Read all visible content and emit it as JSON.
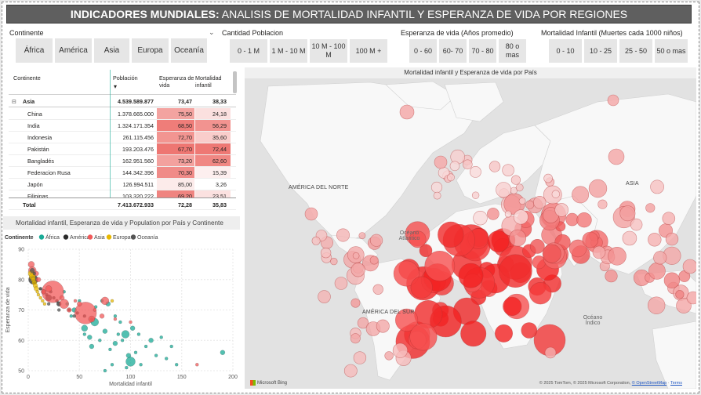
{
  "title": {
    "bold": "INDICADORES MUNDIALES:",
    "rest": " ANALISIS DE MORTALIDAD INFANTIL Y ESPERANZA DE VIDA POR REGIONES"
  },
  "slicers": {
    "continente": {
      "label": "Continente",
      "items": [
        "África",
        "América",
        "Asia",
        "Europa",
        "Oceanía"
      ]
    },
    "poblacion": {
      "label": "Cantidad Poblacion",
      "items": [
        "0 - 1 M",
        "1 M - 10 M",
        "10 M - 100 M",
        "100 M +"
      ]
    },
    "esperanza": {
      "label": "Esperanza de vida (Años promedio)",
      "items": [
        "0 - 60",
        "60- 70",
        "70 - 80",
        "80 o mas"
      ]
    },
    "mortalidad": {
      "label": "Mortalidad Infantil (Muertes cada 1000 niños)",
      "items": [
        "0 - 10",
        "10 - 25",
        "25 - 50",
        "50 o mas"
      ]
    }
  },
  "table": {
    "headers": {
      "continente": "Continente",
      "poblacion": "Población",
      "esperanza": "Esperanza de vida",
      "mortalidad": "Mortalidad infantil"
    },
    "group": {
      "expander": "⊟",
      "name": "Asia",
      "poblacion": "4.539.589.877",
      "esperanza": "73,47",
      "mortalidad": "38,33"
    },
    "rows": [
      {
        "name": "China",
        "poblacion": "1.378.665.000",
        "esperanza": "75,50",
        "mortalidad": "24,18",
        "e_shade": "#f3a3a0",
        "m_shade": "#fbe0df"
      },
      {
        "name": "India",
        "poblacion": "1.324.171.354",
        "esperanza": "68,50",
        "mortalidad": "56,29",
        "e_shade": "#ef7d79",
        "m_shade": "#f29390"
      },
      {
        "name": "Indonesia",
        "poblacion": "261.115.456",
        "esperanza": "72,70",
        "mortalidad": "35,60",
        "e_shade": "#f29591",
        "m_shade": "#f9cdcb"
      },
      {
        "name": "Pakistán",
        "poblacion": "193.203.476",
        "esperanza": "67,70",
        "mortalidad": "72,44",
        "e_shade": "#ee7672",
        "m_shade": "#ee7874"
      },
      {
        "name": "Bangladés",
        "poblacion": "162.951.560",
        "esperanza": "73,20",
        "mortalidad": "62,60",
        "e_shade": "#f3a19e",
        "m_shade": "#f08783"
      },
      {
        "name": "Federacion Rusa",
        "poblacion": "144.342.396",
        "esperanza": "70,30",
        "mortalidad": "15,39",
        "e_shade": "#f08b88",
        "m_shade": "#fdefef"
      },
      {
        "name": "Japón",
        "poblacion": "126.994.511",
        "esperanza": "85,00",
        "mortalidad": "3,26",
        "e_shade": "#fcebea",
        "m_shade": "#ffffff"
      },
      {
        "name": "Filipinas",
        "poblacion": "103.320.222",
        "esperanza": "69,20",
        "mortalidad": "23,51",
        "e_shade": "#ef8480",
        "m_shade": "#fbe1e0"
      }
    ],
    "total": {
      "name": "Total",
      "poblacion": "7.413.672.933",
      "esperanza": "72,28",
      "mortalidad": "35,83"
    }
  },
  "scatter": {
    "title": "Mortalidad infantil, Esperanza de vida y Population por País y Continente",
    "legend_title": "Continente",
    "xlabel": "Mortalidad infantil",
    "ylabel": "Esperanza de vida",
    "x_ticks": [
      "0",
      "50",
      "100",
      "150",
      "200"
    ],
    "y_ticks": [
      "50",
      "60",
      "70",
      "80",
      "90"
    ]
  },
  "chart_data": {
    "type": "scatter",
    "title": "Mortalidad infantil, Esperanza de vida y Population por País y Continente",
    "xlabel": "Mortalidad infantil",
    "ylabel": "Esperanza de vida",
    "xlim": [
      0,
      200
    ],
    "ylim": [
      50,
      90
    ],
    "series": [
      {
        "name": "África",
        "color": "#1aab97",
        "points": [
          [
            55,
            64,
            4
          ],
          [
            60,
            61,
            3
          ],
          [
            62,
            58,
            3
          ],
          [
            70,
            60,
            2
          ],
          [
            75,
            63,
            3
          ],
          [
            80,
            57,
            2
          ],
          [
            85,
            59,
            3
          ],
          [
            95,
            62,
            5
          ],
          [
            98,
            55,
            3
          ],
          [
            100,
            53,
            6
          ],
          [
            105,
            56,
            2
          ],
          [
            110,
            52,
            2
          ],
          [
            115,
            58,
            2
          ],
          [
            120,
            60,
            3
          ],
          [
            125,
            55,
            2
          ],
          [
            130,
            61,
            2
          ],
          [
            135,
            54,
            2
          ],
          [
            140,
            58,
            2
          ],
          [
            145,
            52,
            2
          ],
          [
            190,
            56,
            3
          ],
          [
            66,
            71,
            2
          ],
          [
            72,
            73,
            2
          ],
          [
            78,
            72,
            3
          ],
          [
            85,
            68,
            2
          ],
          [
            90,
            66,
            2
          ],
          [
            45,
            70,
            3
          ],
          [
            50,
            73,
            2
          ],
          [
            35,
            76,
            2
          ],
          [
            38,
            72,
            2
          ],
          [
            42,
            68,
            2
          ],
          [
            88,
            62,
            2
          ],
          [
            92,
            60,
            2
          ],
          [
            102,
            64,
            3
          ],
          [
            108,
            62,
            2
          ],
          [
            65,
            66,
            5
          ],
          [
            55,
            62,
            2
          ],
          [
            75,
            50,
            2
          ],
          [
            82,
            52,
            2
          ],
          [
            96,
            51,
            2
          ]
        ]
      },
      {
        "name": "América",
        "color": "#2b2b2b",
        "points": [
          [
            5,
            80,
            6
          ],
          [
            6,
            79,
            2
          ],
          [
            12,
            77,
            2
          ],
          [
            15,
            76,
            3
          ],
          [
            18,
            75,
            2
          ],
          [
            20,
            74,
            4
          ],
          [
            22,
            76,
            2
          ],
          [
            25,
            74,
            2
          ],
          [
            28,
            73,
            2
          ],
          [
            30,
            72,
            3
          ],
          [
            40,
            70,
            2
          ],
          [
            48,
            69,
            2
          ],
          [
            55,
            68,
            2
          ],
          [
            62,
            67,
            2
          ]
        ]
      },
      {
        "name": "Asia",
        "color": "#f15a5a",
        "points": [
          [
            3,
            85,
            4
          ],
          [
            4,
            83,
            5
          ],
          [
            8,
            82,
            3
          ],
          [
            10,
            80,
            3
          ],
          [
            24,
            76,
            14
          ],
          [
            56,
            69,
            14
          ],
          [
            35,
            72,
            6
          ],
          [
            62,
            67,
            4
          ],
          [
            72,
            68,
            3
          ],
          [
            40,
            70,
            3
          ],
          [
            50,
            72,
            3
          ],
          [
            33,
            74,
            3
          ],
          [
            46,
            73,
            2
          ],
          [
            65,
            70,
            2
          ],
          [
            75,
            73,
            5
          ],
          [
            85,
            67,
            2
          ],
          [
            100,
            66,
            2
          ],
          [
            20,
            77,
            4
          ],
          [
            15,
            76,
            3
          ],
          [
            165,
            52,
            2
          ]
        ]
      },
      {
        "name": "Europa",
        "color": "#e8b800",
        "points": [
          [
            3,
            82,
            4
          ],
          [
            4,
            81,
            4
          ],
          [
            5,
            80,
            3
          ],
          [
            6,
            79,
            3
          ],
          [
            7,
            78,
            3
          ],
          [
            8,
            77,
            3
          ],
          [
            9,
            76,
            2
          ],
          [
            10,
            75,
            2
          ],
          [
            12,
            74,
            2
          ],
          [
            14,
            73,
            2
          ],
          [
            16,
            72,
            2
          ],
          [
            82,
            73,
            2
          ]
        ]
      },
      {
        "name": "Oceanía",
        "color": "#555555",
        "points": [
          [
            4,
            83,
            3
          ],
          [
            6,
            82,
            2
          ],
          [
            20,
            72,
            2
          ],
          [
            30,
            70,
            2
          ],
          [
            45,
            68,
            2
          ]
        ]
      }
    ]
  },
  "map": {
    "title": "Mortalidad infantil y Esperanza de vida por País",
    "labels": {
      "na": "AMÉRICA DEL NORTE",
      "sa": "AMÉRICA DEL SUR",
      "asia": "ASIA",
      "atl": "Océano Atlántico",
      "ind": "Océano Índico"
    },
    "attribution_text": "© 2025 TomTom, © 2025 Microsoft Corporation, ",
    "attribution_link": "© OpenStreetMap",
    "attribution_terms": "Terms",
    "bing": "Microsoft Bing"
  }
}
